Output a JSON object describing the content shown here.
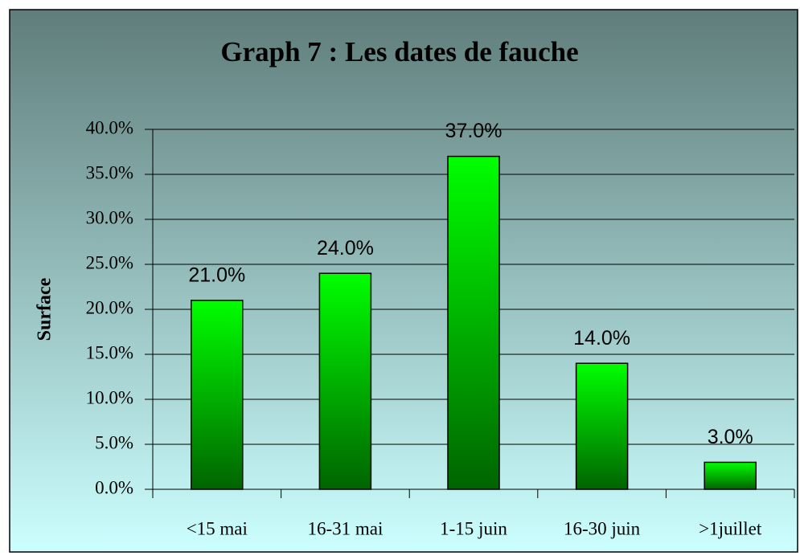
{
  "chart_data": {
    "type": "bar",
    "title": "Graph 7 : Les dates de fauche",
    "y_label": "Surface",
    "categories": [
      "<15 mai",
      "16-31 mai",
      "1-15 juin",
      "16-30 juin",
      ">1juillet"
    ],
    "values": [
      21,
      24,
      37,
      14,
      3
    ],
    "value_labels": [
      "21.0%",
      "24.0%",
      "37.0%",
      "14.0%",
      "3.0%"
    ],
    "color": "#00ff00",
    "ylim": [
      0,
      40
    ],
    "yticks": [
      {
        "value": 0,
        "label": "0.0%"
      },
      {
        "value": 5,
        "label": "5.0%"
      },
      {
        "value": 10,
        "label": "10.0%"
      },
      {
        "value": 15,
        "label": "15.0%"
      },
      {
        "value": 20,
        "label": "20.0%"
      },
      {
        "value": 25,
        "label": "25.0%"
      },
      {
        "value": 30,
        "label": "30.0%"
      },
      {
        "value": 35,
        "label": "35.0%"
      },
      {
        "value": 40,
        "label": "40.0%"
      }
    ],
    "grid": true
  }
}
